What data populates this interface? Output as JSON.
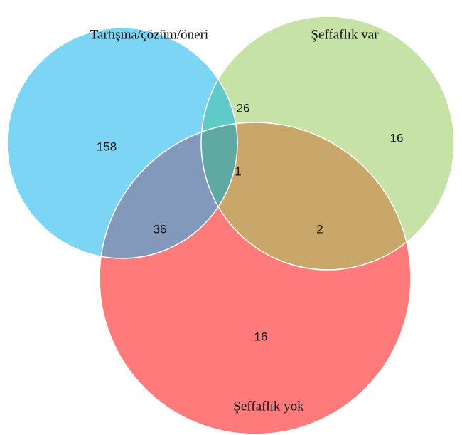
{
  "sets": [
    {
      "label": "Tartışma/çözüm/öneri",
      "color": "#7dd5f6"
    },
    {
      "label": "Şeffaflık var",
      "color": "#c6e2a7"
    },
    {
      "label": "Şeffaflık yok",
      "color": "#ff7b7b"
    }
  ],
  "regions": {
    "only_1": 158,
    "only_2": 16,
    "only_3": 16,
    "sets_1_2": 26,
    "sets_1_3": 36,
    "sets_2_3": 2,
    "all": 1
  },
  "overlap_colors": {
    "sets_1_2": "#5fcac8",
    "sets_1_3": "#8299bb",
    "sets_2_3": "#c9a76a",
    "all": "#5fa9a2"
  }
}
